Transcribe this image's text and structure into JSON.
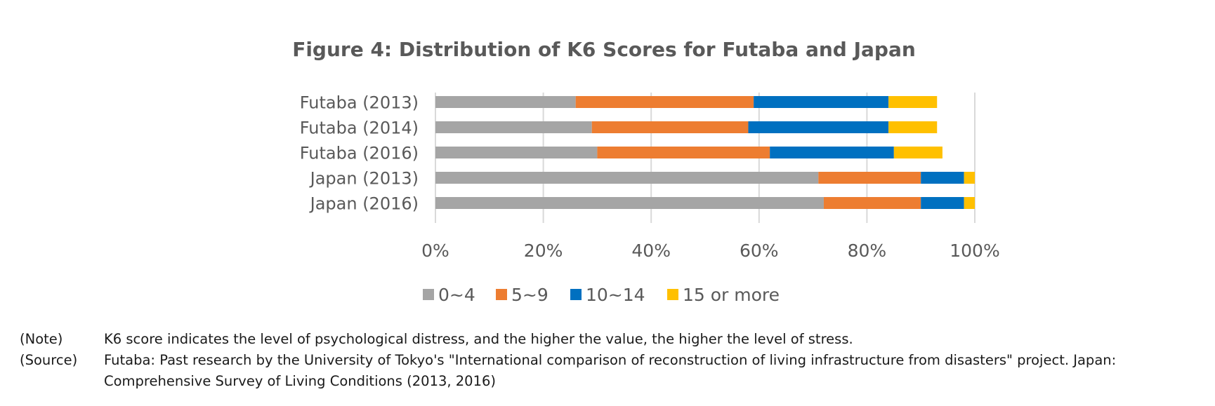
{
  "chart_data": {
    "type": "bar",
    "orientation": "horizontal",
    "stacked": "percent",
    "title": "Figure 4: Distribution of K6 Scores for Futaba and Japan",
    "categories": [
      "Futaba (2013)",
      "Futaba (2014)",
      "Futaba (2016)",
      "Japan (2013)",
      "Japan (2016)"
    ],
    "series": [
      {
        "name": "0~4",
        "color": "#a5a5a5",
        "values": [
          26,
          29,
          30,
          71,
          72
        ]
      },
      {
        "name": "5~9",
        "color": "#ed7d31",
        "values": [
          33,
          29,
          32,
          19,
          18
        ]
      },
      {
        "name": "10~14",
        "color": "#0070c0",
        "values": [
          25,
          26,
          23,
          8,
          8
        ]
      },
      {
        "name": "15 or more",
        "color": "#ffc000",
        "values": [
          9,
          9,
          9,
          2,
          2
        ]
      }
    ],
    "xticks": [
      "0%",
      "20%",
      "40%",
      "60%",
      "80%",
      "100%"
    ],
    "xlim": [
      0,
      100
    ],
    "grid": true,
    "legend_position": "bottom"
  },
  "notes": [
    {
      "key": "(Note)",
      "text": "K6 score indicates the level of psychological distress, and the higher the value, the higher the level of stress."
    },
    {
      "key": "(Source)",
      "text": "Futaba: Past research by the University of Tokyo's \"International comparison of reconstruction of living infrastructure from disasters\" project. Japan: Comprehensive Survey of Living Conditions (2013, 2016)"
    }
  ]
}
